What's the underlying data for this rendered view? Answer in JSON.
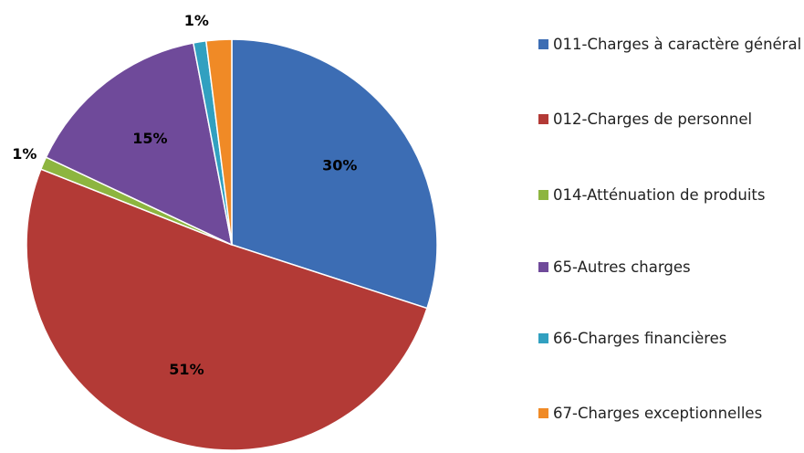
{
  "chart_data": {
    "type": "pie",
    "categories": [
      "011-Charges à caractère général",
      "012-Charges de personnel",
      "014-Atténuation de produits",
      "65-Autres charges",
      "66-Charges financières",
      "67-Charges exceptionnelles"
    ],
    "values": [
      30,
      51,
      1,
      15,
      1,
      2
    ],
    "value_labels": [
      "30%",
      "51%",
      "1%",
      "15%",
      "1%",
      null
    ],
    "colors": [
      "#3c6db4",
      "#b33a36",
      "#8db53f",
      "#6f4a9a",
      "#31a0c0",
      "#f08a26"
    ]
  }
}
